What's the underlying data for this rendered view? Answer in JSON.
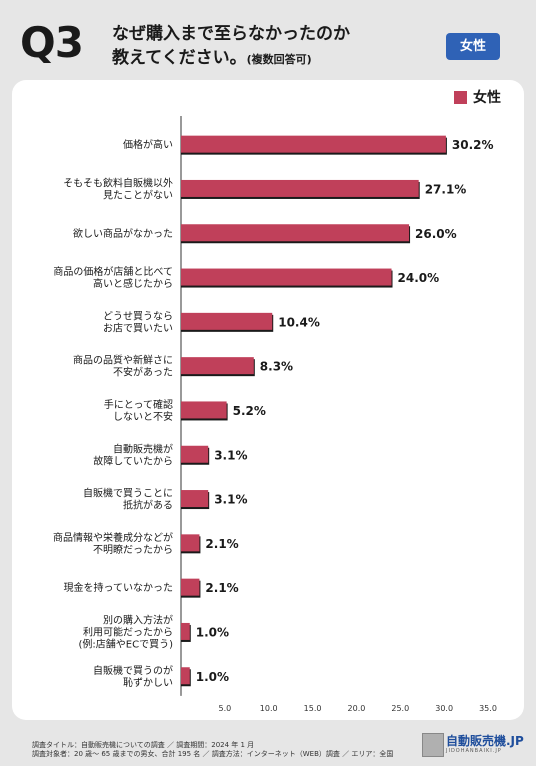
{
  "header": {
    "question_number": "Q3",
    "title_line1": "なぜ購入まで至らなかったのか",
    "title_line2": "教えてください。",
    "title_note": "(複数回答可)",
    "badge": "女性"
  },
  "colors": {
    "bar": "#c0405a",
    "bar_shadow": "#1a1a1a",
    "badge": "#2f62b6"
  },
  "chart_data": {
    "type": "bar",
    "orientation": "horizontal",
    "categories": [
      "価格が高い",
      "そもそも飲料自販機以外\n見たことがない",
      "欲しい商品がなかった",
      "商品の価格が店舗と比べて\n高いと感じたから",
      "どうせ買うなら\nお店で買いたい",
      "商品の品質や新鮮さに\n不安があった",
      "手にとって確認\nしないと不安",
      "自動販売機が\n故障していたから",
      "自販機で買うことに\n抵抗がある",
      "商品情報や栄養成分などが\n不明瞭だったから",
      "現金を持っていなかった",
      "別の購入方法が\n利用可能だったから\n(例:店舗やECで買う)",
      "自販機で買うのが\n恥ずかしい"
    ],
    "series": [
      {
        "name": "女性",
        "values": [
          30.2,
          27.1,
          26.0,
          24.0,
          10.4,
          8.3,
          5.2,
          3.1,
          3.1,
          2.1,
          2.1,
          1.0,
          1.0
        ]
      }
    ],
    "value_labels": [
      "30.2%",
      "27.1%",
      "26.0%",
      "24.0%",
      "10.4%",
      "8.3%",
      "5.2%",
      "3.1%",
      "3.1%",
      "2.1%",
      "2.1%",
      "1.0%",
      "1.0%"
    ],
    "xlim": [
      0,
      35
    ],
    "xticks": [
      "5.0",
      "10.0",
      "15.0",
      "20.0",
      "25.0",
      "30.0",
      "35.0"
    ],
    "legend": "top-right",
    "grid": false
  },
  "footer": {
    "line1": "調査タイトル：自動販売機についての調査 ／ 調査期間：2024 年 1 月",
    "line2": "調査対象者：20 歳～ 65 歳までの男女、合計 195 名 ／ 調査方法：インターネット（WEB）調査 ／ エリア：全国"
  },
  "logo": {
    "name": "自動販売機.JP",
    "sub": "JIDOHANBAIKI.JP"
  }
}
